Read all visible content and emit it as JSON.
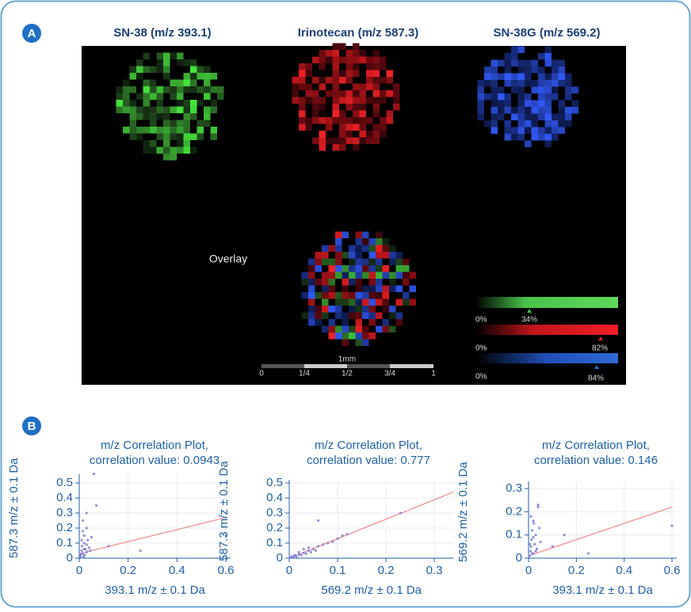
{
  "panel_a": {
    "label": "A",
    "titles": [
      "SN-38 (m/z 393.1)",
      "Irinotecan (m/z 587.3)",
      "SN-38G (m/z 569.2)"
    ],
    "overlay_label": "Overlay",
    "scale": {
      "label": "1mm",
      "ticks": [
        "0",
        "1/4",
        "1/2",
        "3/4",
        "1"
      ]
    },
    "legend": [
      {
        "start": "0%",
        "marker": "34%"
      },
      {
        "start": "0%",
        "marker": "82%"
      },
      {
        "start": "0%",
        "marker": "84%"
      }
    ]
  },
  "panel_b": {
    "label": "B"
  },
  "chart_data": [
    {
      "type": "scatter",
      "title": "m/z Correlation Plot,",
      "subtitle": "correlation value: 0.0943",
      "xlabel": "393.1 m/z ± 0.1 Da",
      "ylabel": "587.3 m/z ± 0.1 Da",
      "xlim": [
        0,
        0.62
      ],
      "ylim": [
        0,
        0.56
      ],
      "xticks": [
        0,
        0.2,
        0.4,
        0.6
      ],
      "yticks": [
        0,
        0.1,
        0.2,
        0.3,
        0.4,
        0.5
      ],
      "grid": true,
      "series": [
        {
          "color": "#7b7fd4",
          "x": [
            0.005,
            0.01,
            0.012,
            0.015,
            0.02,
            0.02,
            0.025,
            0.03,
            0.03,
            0.035,
            0.04,
            0.005,
            0.008,
            0.01,
            0.015,
            0.018,
            0.022,
            0.03,
            0.045,
            0.05,
            0.06,
            0.07,
            0.03,
            0.12,
            0.25,
            0.6,
            0.015,
            0.02
          ],
          "y": [
            0.02,
            0.05,
            0.08,
            0.03,
            0.1,
            0.15,
            0.06,
            0.04,
            0.2,
            0.12,
            0.07,
            0.01,
            0.03,
            0.12,
            0.18,
            0.01,
            0.02,
            0.09,
            0.05,
            0.14,
            0.56,
            0.35,
            0.3,
            0.08,
            0.05,
            0.15,
            0.25,
            0.06
          ]
        }
      ],
      "trendline": {
        "color": "#f08a8a",
        "x": [
          0,
          0.6
        ],
        "y": [
          0.03,
          0.27
        ]
      }
    },
    {
      "type": "scatter",
      "title": "m/z Correlation Plot,",
      "subtitle": "correlation value: 0.777",
      "xlabel": "569.2 m/z ± 0.1 Da",
      "ylabel": "587.3 m/z ± 0.1 Da",
      "xlim": [
        0,
        0.34
      ],
      "ylim": [
        0,
        0.52
      ],
      "xticks": [
        0,
        0.1,
        0.2,
        0.3
      ],
      "yticks": [
        0,
        0.1,
        0.2,
        0.3,
        0.4,
        0.5
      ],
      "grid": true,
      "series": [
        {
          "color": "#7b7fd4",
          "x": [
            0.002,
            0.005,
            0.008,
            0.01,
            0.012,
            0.015,
            0.02,
            0.025,
            0.03,
            0.035,
            0.04,
            0.045,
            0.05,
            0.055,
            0.06,
            0.07,
            0.08,
            0.09,
            0.1,
            0.11,
            0.12,
            0.06,
            0.23,
            0.03,
            0.02,
            0.04
          ],
          "y": [
            0.005,
            0.01,
            0.003,
            0.015,
            0.02,
            0.01,
            0.025,
            0.02,
            0.035,
            0.03,
            0.05,
            0.04,
            0.06,
            0.05,
            0.08,
            0.09,
            0.1,
            0.11,
            0.13,
            0.15,
            0.16,
            0.25,
            0.3,
            0.06,
            0.04,
            0.07
          ]
        }
      ],
      "trendline": {
        "color": "#f08a8a",
        "x": [
          0,
          0.34
        ],
        "y": [
          0,
          0.44
        ]
      }
    },
    {
      "type": "scatter",
      "title": "m/z Correlation Plot,",
      "subtitle": "correlation value: 0.146",
      "xlabel": "393.1 m/z ± 0.1 Da",
      "ylabel": "569.2 m/z ± 0.1 Da",
      "xlim": [
        0,
        0.62
      ],
      "ylim": [
        0,
        0.33
      ],
      "xticks": [
        0,
        0.2,
        0.4,
        0.6
      ],
      "yticks": [
        0,
        0.1,
        0.2,
        0.3
      ],
      "grid": true,
      "series": [
        {
          "color": "#7b7fd4",
          "x": [
            0.005,
            0.008,
            0.01,
            0.012,
            0.015,
            0.02,
            0.022,
            0.025,
            0.03,
            0.035,
            0.04,
            0.045,
            0.005,
            0.01,
            0.015,
            0.02,
            0.03,
            0.05,
            0.1,
            0.15,
            0.25,
            0.6,
            0.04,
            0.02
          ],
          "y": [
            0.01,
            0.03,
            0.05,
            0.08,
            0.12,
            0.02,
            0.15,
            0.06,
            0.1,
            0.04,
            0.22,
            0.13,
            0.06,
            0.18,
            0.02,
            0.09,
            0.03,
            0.07,
            0.05,
            0.1,
            0.02,
            0.14,
            0.23,
            0.16
          ]
        }
      ],
      "trendline": {
        "color": "#f08a8a",
        "x": [
          0,
          0.6
        ],
        "y": [
          0.01,
          0.22
        ]
      }
    }
  ]
}
